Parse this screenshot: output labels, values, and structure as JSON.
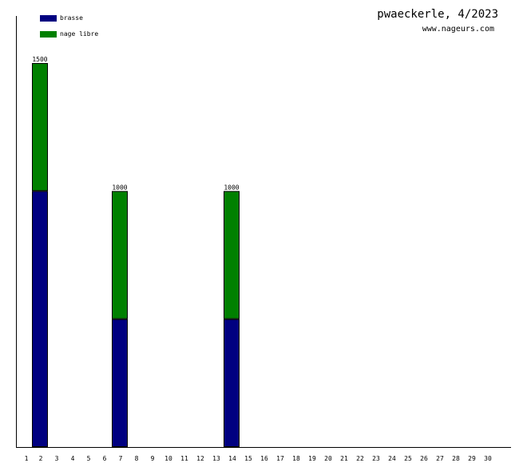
{
  "title": "pwaeckerle, 4/2023",
  "subtitle": "www.nageurs.com",
  "colors": {
    "brasse": "#000080",
    "nage_libre": "#008000",
    "axis": "#000000",
    "background": "#ffffff"
  },
  "chart_data": {
    "type": "bar",
    "stacked": true,
    "title": "pwaeckerle, 4/2023",
    "xlabel": "",
    "ylabel": "",
    "ylim": [
      0,
      1500
    ],
    "grid": false,
    "legend_position": "top-left",
    "categories": [
      "1",
      "2",
      "3",
      "4",
      "5",
      "6",
      "7",
      "8",
      "9",
      "10",
      "11",
      "12",
      "13",
      "14",
      "15",
      "16",
      "17",
      "18",
      "19",
      "20",
      "21",
      "22",
      "23",
      "24",
      "25",
      "26",
      "27",
      "28",
      "29",
      "30"
    ],
    "series": [
      {
        "name": "brasse",
        "color": "#000080",
        "values": [
          0,
          1000,
          0,
          0,
          0,
          0,
          500,
          0,
          0,
          0,
          0,
          0,
          0,
          500,
          0,
          0,
          0,
          0,
          0,
          0,
          0,
          0,
          0,
          0,
          0,
          0,
          0,
          0,
          0,
          0
        ]
      },
      {
        "name": "nage libre",
        "color": "#008000",
        "values": [
          0,
          500,
          0,
          0,
          0,
          0,
          500,
          0,
          0,
          0,
          0,
          0,
          0,
          500,
          0,
          0,
          0,
          0,
          0,
          0,
          0,
          0,
          0,
          0,
          0,
          0,
          0,
          0,
          0,
          0
        ]
      }
    ],
    "totals_labels": [
      {
        "category": "2",
        "text": "1500"
      },
      {
        "category": "7",
        "text": "1000"
      },
      {
        "category": "14",
        "text": "1000"
      }
    ]
  }
}
